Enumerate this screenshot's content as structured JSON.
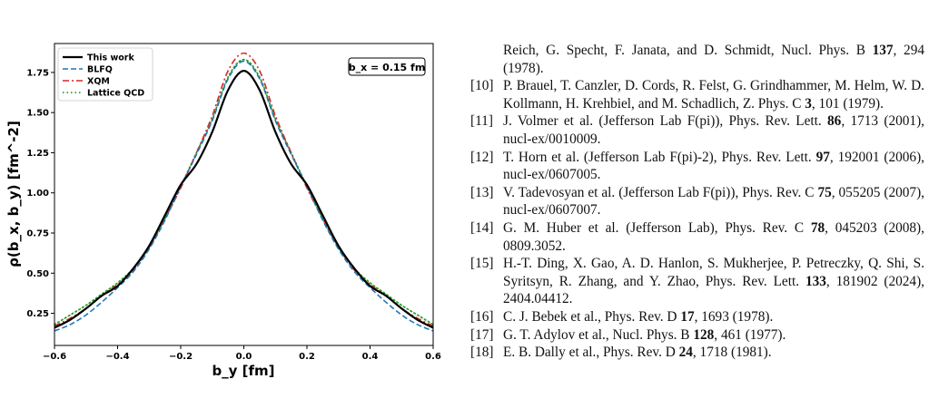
{
  "header": {
    "text": ""
  },
  "chart_data": {
    "type": "line",
    "xlim": [
      -0.6,
      0.6
    ],
    "ylim": [
      0.05,
      1.93
    ],
    "xticks": [
      -0.6,
      -0.4,
      -0.2,
      0.0,
      0.2,
      0.4,
      0.6
    ],
    "xtick_labels": [
      "−0.6",
      "−0.4",
      "−0.2",
      "0.0",
      "0.2",
      "0.4",
      "0.6"
    ],
    "yticks": [
      0.25,
      0.5,
      0.75,
      1.0,
      1.25,
      1.5,
      1.75
    ],
    "ytick_labels": [
      "0.25",
      "0.50",
      "0.75",
      "1.00",
      "1.25",
      "1.50",
      "1.75"
    ],
    "xlabel": "b_y [fm]",
    "ylabel": "ρ(b_x, b_y) [fm^-2]",
    "annotation": "b_x = 0.15 fm",
    "grid": false,
    "legend_position": "top-left",
    "series": [
      {
        "name": "This work",
        "color": "#000000",
        "style": "solid",
        "x": [
          0.0,
          0.05,
          0.1,
          0.15,
          0.2,
          0.25,
          0.3,
          0.35,
          0.4,
          0.45,
          0.5,
          0.55,
          0.6
        ],
        "y": [
          1.76,
          1.64,
          1.38,
          1.18,
          1.05,
          0.86,
          0.67,
          0.53,
          0.42,
          0.36,
          0.28,
          0.21,
          0.16
        ]
      },
      {
        "name": "BLFQ",
        "color": "#1f77b4",
        "style": "dashed",
        "x": [
          0.0,
          0.05,
          0.1,
          0.15,
          0.2,
          0.25,
          0.3,
          0.35,
          0.4,
          0.45,
          0.5,
          0.55,
          0.6
        ],
        "y": [
          1.82,
          1.71,
          1.45,
          1.24,
          1.04,
          0.83,
          0.65,
          0.51,
          0.41,
          0.32,
          0.24,
          0.18,
          0.14
        ]
      },
      {
        "name": "XQM",
        "color": "#d62728",
        "style": "dashdot",
        "x": [
          0.0,
          0.05,
          0.1,
          0.15,
          0.2,
          0.25,
          0.3,
          0.35,
          0.4,
          0.45,
          0.5,
          0.55,
          0.6
        ],
        "y": [
          1.87,
          1.76,
          1.48,
          1.25,
          1.03,
          0.84,
          0.66,
          0.52,
          0.43,
          0.36,
          0.28,
          0.22,
          0.17
        ]
      },
      {
        "name": "Lattice QCD",
        "color": "#2ca02c",
        "style": "dotted",
        "x": [
          0.0,
          0.05,
          0.1,
          0.15,
          0.2,
          0.25,
          0.3,
          0.35,
          0.4,
          0.45,
          0.5,
          0.55,
          0.6
        ],
        "y": [
          1.83,
          1.72,
          1.46,
          1.25,
          1.04,
          0.84,
          0.66,
          0.53,
          0.44,
          0.37,
          0.3,
          0.24,
          0.18
        ]
      }
    ]
  },
  "references": [
    {
      "num": "",
      "parts": [
        {
          "t": "Reich, G. Specht, F. Janata, and D. Schmidt, Nucl. Phys. B "
        },
        {
          "t": "137",
          "b": true
        },
        {
          "t": ", 294 (1978)."
        }
      ]
    },
    {
      "num": "[10]",
      "parts": [
        {
          "t": "P. Brauel, T. Canzler, D. Cords, R. Felst, G. Grindhammer, M. Helm, W. D. Kollmann, H. Krehbiel, and M. Schadlich, Z. Phys. C "
        },
        {
          "t": "3",
          "b": true
        },
        {
          "t": ", 101 (1979)."
        }
      ]
    },
    {
      "num": "[11]",
      "parts": [
        {
          "t": "J. Volmer et al. (Jefferson Lab F(pi)), Phys. Rev. Lett. "
        },
        {
          "t": "86",
          "b": true
        },
        {
          "t": ", 1713 (2001), nucl-ex/0010009."
        }
      ]
    },
    {
      "num": "[12]",
      "parts": [
        {
          "t": "T. Horn et al. (Jefferson Lab F(pi)-2), Phys. Rev. Lett. "
        },
        {
          "t": "97",
          "b": true
        },
        {
          "t": ", 192001 (2006), nucl-ex/0607005."
        }
      ]
    },
    {
      "num": "[13]",
      "parts": [
        {
          "t": "V. Tadevosyan et al. (Jefferson Lab F(pi)), Phys. Rev. C "
        },
        {
          "t": "75",
          "b": true
        },
        {
          "t": ", 055205 (2007), nucl-ex/0607007."
        }
      ]
    },
    {
      "num": "[14]",
      "parts": [
        {
          "t": "G. M. Huber et al. (Jefferson Lab), Phys. Rev. C "
        },
        {
          "t": "78",
          "b": true
        },
        {
          "t": ", 045203 (2008), 0809.3052."
        }
      ]
    },
    {
      "num": "[15]",
      "parts": [
        {
          "t": "H.-T. Ding, X. Gao, A. D. Hanlon, S. Mukherjee, P. Petreczky, Q. Shi, S. Syritsyn, R. Zhang, and Y. Zhao, Phys. Rev. Lett. "
        },
        {
          "t": "133",
          "b": true
        },
        {
          "t": ", 181902 (2024), 2404.04412."
        }
      ]
    },
    {
      "num": "[16]",
      "parts": [
        {
          "t": "C. J. Bebek et al., Phys. Rev. D "
        },
        {
          "t": "17",
          "b": true
        },
        {
          "t": ", 1693 (1978)."
        }
      ]
    },
    {
      "num": "[17]",
      "parts": [
        {
          "t": "G. T. Adylov et al., Nucl. Phys. B "
        },
        {
          "t": "128",
          "b": true
        },
        {
          "t": ", 461 (1977)."
        }
      ]
    },
    {
      "num": "[18]",
      "parts": [
        {
          "t": "E. B. Dally et al., Phys. Rev. D "
        },
        {
          "t": "24",
          "b": true
        },
        {
          "t": ", 1718 (1981)."
        }
      ]
    }
  ]
}
